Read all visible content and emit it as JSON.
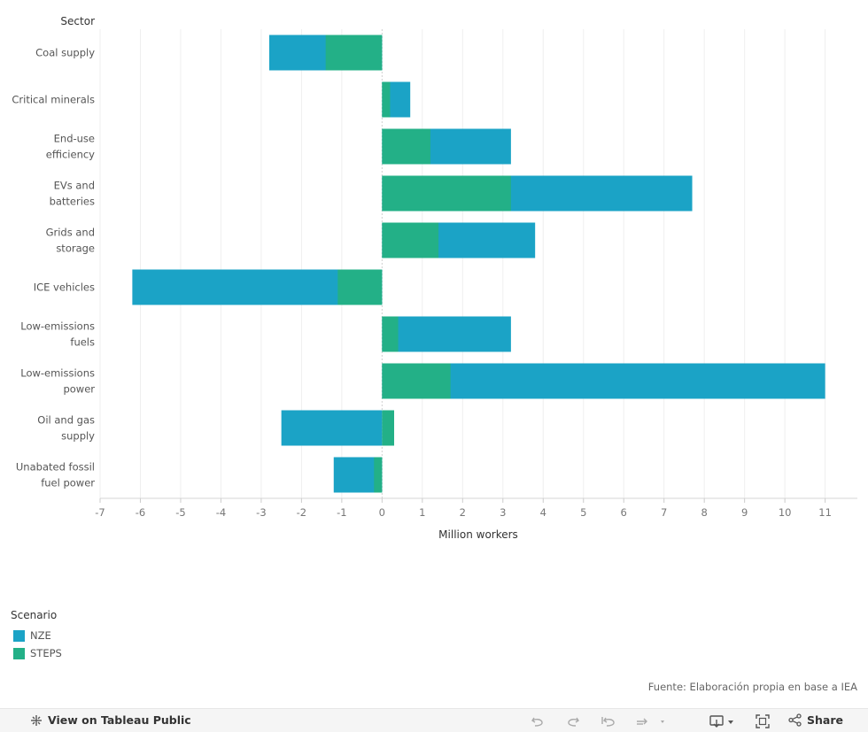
{
  "chart_data": {
    "type": "bar",
    "orientation": "horizontal",
    "stacked": true,
    "title": "",
    "ylabel": "Sector",
    "xlabel": "Million workers",
    "xlim": [
      -7,
      11.8
    ],
    "xticks": [
      "-7",
      "-6",
      "-5",
      "-4",
      "-3",
      "-2",
      "-1",
      "0",
      "1",
      "2",
      "3",
      "4",
      "5",
      "6",
      "7",
      "8",
      "9",
      "10",
      "11"
    ],
    "grid": true,
    "legend_title": "Scenario",
    "legend_placement": "bottom-left",
    "categories": [
      [
        "Coal supply"
      ],
      [
        "Critical minerals"
      ],
      [
        "End-use",
        "efficiency"
      ],
      [
        "EVs and",
        "batteries"
      ],
      [
        "Grids and",
        "storage"
      ],
      [
        "ICE vehicles"
      ],
      [
        "Low-emissions",
        "fuels"
      ],
      [
        "Low-emissions",
        "power"
      ],
      [
        "Oil and gas",
        "supply"
      ],
      [
        "Unabated fossil",
        "fuel power"
      ]
    ],
    "series": [
      {
        "name": "STEPS",
        "color": "#23b087",
        "values": [
          -1.4,
          0.2,
          1.2,
          3.2,
          1.4,
          -1.1,
          0.4,
          1.7,
          0.3,
          -0.2
        ]
      },
      {
        "name": "NZE",
        "color": "#1ba3c6",
        "values": [
          -2.8,
          0.7,
          3.2,
          7.7,
          3.8,
          -6.2,
          3.2,
          11.0,
          -2.5,
          -1.2
        ]
      }
    ]
  },
  "source": "Fuente: Elaboración propia en base a IEA",
  "toolbar": {
    "view_label": "View on Tableau Public",
    "share_label": "Share"
  }
}
